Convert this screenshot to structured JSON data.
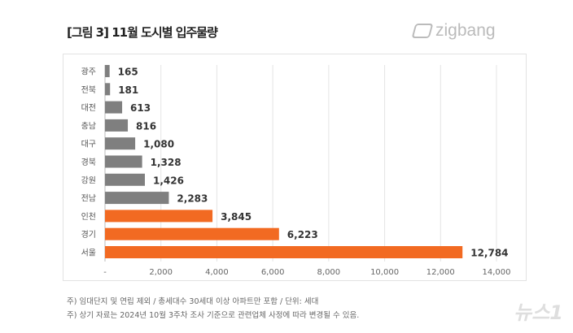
{
  "header": {
    "title": "[그림 3] 11월 도시별 입주물량",
    "logo": "zigbang"
  },
  "chart_data": {
    "type": "bar",
    "orientation": "horizontal",
    "categories": [
      "광주",
      "전북",
      "대전",
      "충남",
      "대구",
      "경북",
      "강원",
      "전남",
      "인천",
      "경기",
      "서울"
    ],
    "values": [
      165,
      181,
      613,
      816,
      1080,
      1328,
      1426,
      2283,
      3845,
      6223,
      12784
    ],
    "value_labels": [
      "165",
      "181",
      "613",
      "816",
      "1,080",
      "1,328",
      "1,426",
      "2,283",
      "3,845",
      "6,223",
      "12,784"
    ],
    "highlight": [
      "인천",
      "경기",
      "서울"
    ],
    "colors": {
      "default": "#7f7f7f",
      "highlight": "#f26a22"
    },
    "xlim": [
      0,
      14000
    ],
    "xticks": [
      "-",
      "2,000",
      "4,000",
      "6,000",
      "8,000",
      "10,000",
      "12,000",
      "14,000"
    ],
    "grid": true
  },
  "notes": [
    "주) 임대단지 및 연립 제외 / 총세대수 30세대 이상 아파트만 포함 / 단위: 세대",
    "주) 상기 자료는 2024년 10월 3주차 조사 기준으로 관련업체 사정에 따라 변경될 수 있음."
  ],
  "watermark": "뉴스1"
}
